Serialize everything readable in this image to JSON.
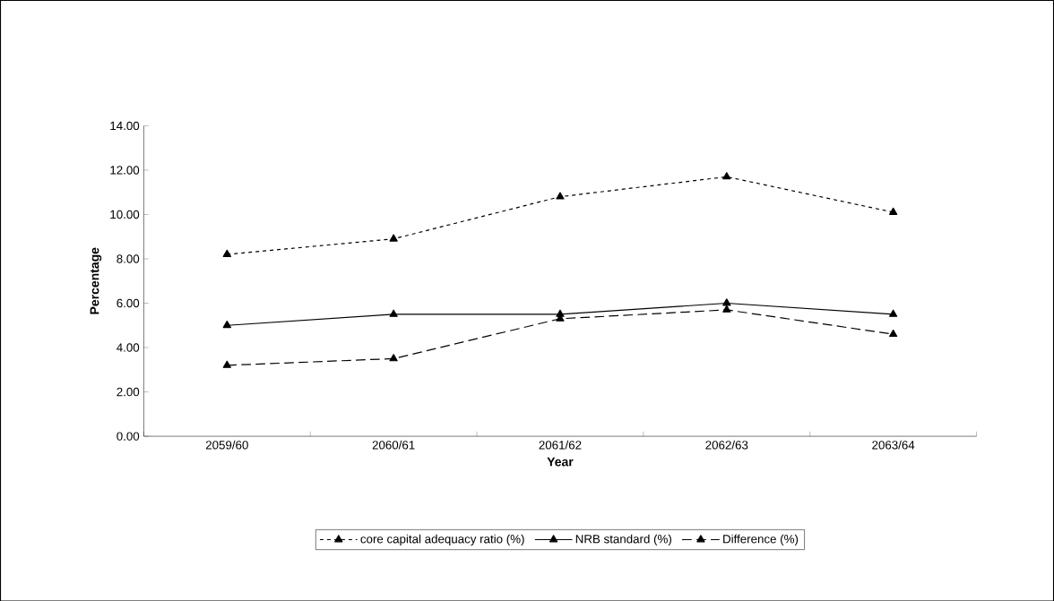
{
  "chart_data": {
    "type": "line",
    "xlabel": "Year",
    "ylabel": "Percentage",
    "categories": [
      "2059/60",
      "2060/61",
      "2061/62",
      "2062/63",
      "2063/64"
    ],
    "series": [
      {
        "name": "core capital adequacy ratio (%)",
        "color": "#000000",
        "line_style": "dotted",
        "values": [
          8.2,
          8.9,
          10.8,
          11.7,
          10.1
        ]
      },
      {
        "name": "NRB standard (%)",
        "color": "#000000",
        "line_style": "solid",
        "values": [
          5.0,
          5.5,
          5.5,
          6.0,
          5.5
        ]
      },
      {
        "name": "Difference (%)",
        "color": "#000000",
        "line_style": "dashed",
        "values": [
          3.2,
          3.5,
          5.3,
          5.7,
          4.6
        ]
      }
    ],
    "ylim": [
      0,
      14
    ],
    "yticks": [
      {
        "value": 0,
        "label": "0.00"
      },
      {
        "value": 2,
        "label": "2.00"
      },
      {
        "value": 4,
        "label": "4.00"
      },
      {
        "value": 6,
        "label": "6.00"
      },
      {
        "value": 8,
        "label": "8.00"
      },
      {
        "value": 10,
        "label": "10.00"
      },
      {
        "value": 12,
        "label": "12.00"
      },
      {
        "value": 14,
        "label": "14.00"
      }
    ],
    "marker": "triangle",
    "legend": "bottom"
  }
}
